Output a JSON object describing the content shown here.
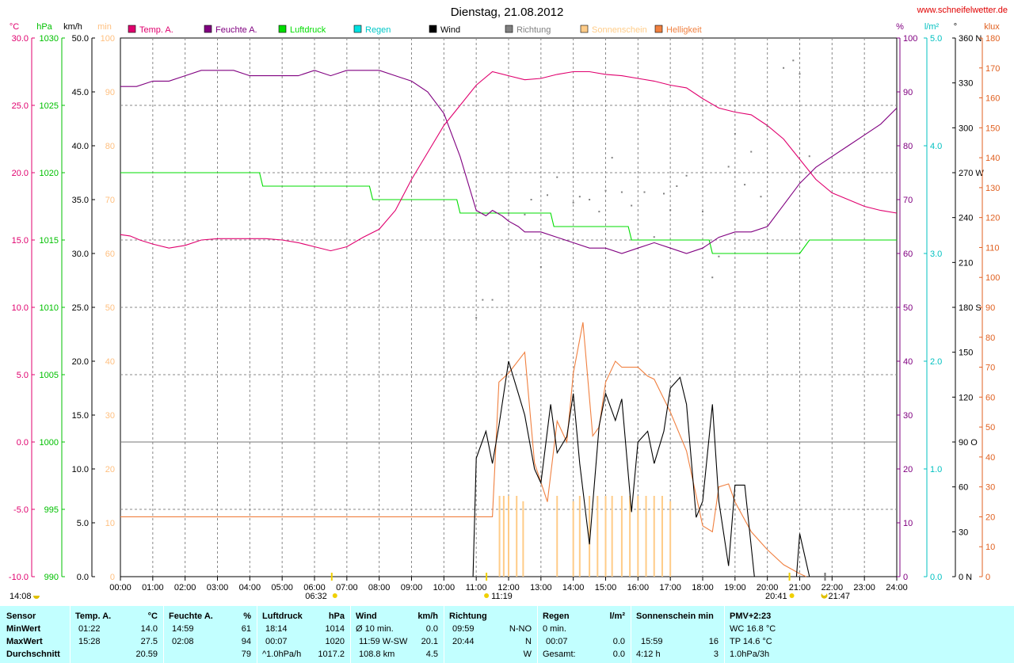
{
  "header": {
    "title": "Dienstag, 21.08.2012",
    "website": "www.schneifelwetter.de"
  },
  "legend": [
    {
      "label": "Temp. A.",
      "color": "#e0006e"
    },
    {
      "label": "Feuchte A.",
      "color": "#800080"
    },
    {
      "label": "Luftdruck",
      "color": "#00dd00"
    },
    {
      "label": "Regen",
      "color": "#00e0e0"
    },
    {
      "label": "Wind",
      "color": "#000000"
    },
    {
      "label": "Richtung",
      "color": "#808080"
    },
    {
      "label": "Sonnenschein",
      "color": "#ffcc88"
    },
    {
      "label": "Helligkeit",
      "color": "#f08040"
    }
  ],
  "units": {
    "temp": "°C",
    "pressure": "hPa",
    "wind": "km/h",
    "sun": "min",
    "humidity": "%",
    "rain": "l/m²",
    "dir": "°",
    "lux": "klux"
  },
  "chart_data": {
    "type": "line",
    "x_ticks": [
      "00:00",
      "01:00",
      "02:00",
      "03:00",
      "04:00",
      "05:00",
      "06:00",
      "07:00",
      "08:00",
      "09:00",
      "10:00",
      "11:00",
      "12:00",
      "13:00",
      "14:00",
      "15:00",
      "16:00",
      "17:00",
      "18:00",
      "19:00",
      "20:00",
      "21:00",
      "22:00",
      "23:00",
      "24:00"
    ],
    "xlim": [
      0,
      24
    ],
    "axes": {
      "temp": {
        "range": [
          -10,
          30
        ],
        "ticks": [
          "-10.0",
          "-5.0",
          "0.0",
          "5.0",
          "10.0",
          "15.0",
          "20.0",
          "25.0",
          "30.0"
        ]
      },
      "pressure": {
        "range": [
          990,
          1030
        ],
        "ticks": [
          "990",
          "995",
          "1000",
          "1005",
          "1010",
          "1015",
          "1020",
          "1025",
          "1030"
        ]
      },
      "wind": {
        "range": [
          0,
          50
        ],
        "ticks": [
          "0.0",
          "5.0",
          "10.0",
          "15.0",
          "20.0",
          "25.0",
          "30.0",
          "35.0",
          "40.0",
          "45.0",
          "50.0"
        ]
      },
      "sun": {
        "range": [
          0,
          100
        ],
        "ticks": [
          "0",
          "10",
          "20",
          "30",
          "40",
          "50",
          "60",
          "70",
          "80",
          "90",
          "100"
        ]
      },
      "humidity": {
        "range": [
          0,
          100
        ],
        "ticks": [
          "0",
          "10",
          "20",
          "30",
          "40",
          "50",
          "60",
          "70",
          "80",
          "90",
          "100"
        ]
      },
      "rain": {
        "range": [
          0,
          5
        ],
        "ticks": [
          "0.0",
          "1.0",
          "2.0",
          "3.0",
          "4.0",
          "5.0"
        ]
      },
      "direction": {
        "range": [
          0,
          360
        ],
        "ticks": [
          "0 N",
          "30",
          "60",
          "90 O",
          "120",
          "150",
          "180 S",
          "210",
          "240",
          "270 W",
          "300",
          "330",
          "360 N"
        ]
      },
      "lux": {
        "range": [
          0,
          180
        ],
        "ticks": [
          "0",
          "10",
          "20",
          "30",
          "40",
          "50",
          "60",
          "70",
          "80",
          "90",
          "100",
          "110",
          "120",
          "130",
          "140",
          "150",
          "160",
          "170",
          "180"
        ]
      }
    },
    "series": [
      {
        "name": "Temp. A.",
        "axis": "temp",
        "color": "#e0006e",
        "x": [
          0,
          0.3,
          0.6,
          1.0,
          1.5,
          2.0,
          2.5,
          3.0,
          3.5,
          4.0,
          4.5,
          5.0,
          5.5,
          6.0,
          6.5,
          7.0,
          7.5,
          8.0,
          8.5,
          9.0,
          9.5,
          10.0,
          10.5,
          11.0,
          11.5,
          12.0,
          12.5,
          13.0,
          13.5,
          14.0,
          14.5,
          15.0,
          15.5,
          16.0,
          16.5,
          17.0,
          17.5,
          18.0,
          18.5,
          19.0,
          19.5,
          20.0,
          20.5,
          21.0,
          21.5,
          22.0,
          22.5,
          23.0,
          23.5,
          24.0
        ],
        "y": [
          15.4,
          15.3,
          15.0,
          14.7,
          14.4,
          14.6,
          15.0,
          15.1,
          15.1,
          15.1,
          15.1,
          15.0,
          14.8,
          14.5,
          14.2,
          14.5,
          15.2,
          15.8,
          17.2,
          19.5,
          21.5,
          23.5,
          25.0,
          26.5,
          27.5,
          27.2,
          26.9,
          27.0,
          27.3,
          27.5,
          27.5,
          27.3,
          27.2,
          27.0,
          26.8,
          26.5,
          26.3,
          25.5,
          24.8,
          24.5,
          24.3,
          23.5,
          22.5,
          21.0,
          19.5,
          18.5,
          18.0,
          17.5,
          17.2,
          17.0
        ]
      },
      {
        "name": "Feuchte A.",
        "axis": "humidity",
        "color": "#800080",
        "x": [
          0,
          0.5,
          1.0,
          1.5,
          2.0,
          2.5,
          3.0,
          3.5,
          4.0,
          4.5,
          5.0,
          5.5,
          6.0,
          6.5,
          7.0,
          7.5,
          8.0,
          8.5,
          9.0,
          9.5,
          10.0,
          10.5,
          11.0,
          11.3,
          11.5,
          11.8,
          12.0,
          12.3,
          12.5,
          13.0,
          13.5,
          14.0,
          14.5,
          15.0,
          15.5,
          16.0,
          16.5,
          17.0,
          17.5,
          18.0,
          18.5,
          19.0,
          19.5,
          20.0,
          20.5,
          21.0,
          21.5,
          22.0,
          22.5,
          23.0,
          23.5,
          24.0
        ],
        "y": [
          91,
          91,
          92,
          92,
          93,
          94,
          94,
          94,
          93,
          93,
          93,
          93,
          94,
          93,
          94,
          94,
          94,
          93,
          92,
          90,
          86,
          78,
          68,
          67,
          68,
          67,
          66,
          65,
          64,
          64,
          63,
          62,
          61,
          61,
          60,
          61,
          62,
          61,
          60,
          61,
          63,
          64,
          64,
          65,
          69,
          73,
          76,
          78,
          80,
          82,
          84,
          87
        ]
      },
      {
        "name": "Luftdruck",
        "axis": "pressure",
        "color": "#00dd00",
        "x": [
          0,
          4.3,
          4.4,
          7.7,
          7.8,
          10.4,
          10.5,
          13.3,
          13.4,
          15.7,
          15.8,
          18.2,
          18.3,
          21.0,
          21.3,
          24.0
        ],
        "y": [
          1020.0,
          1020.0,
          1019.0,
          1019.0,
          1018.0,
          1018.0,
          1017.0,
          1017.0,
          1016.0,
          1016.0,
          1015.0,
          1015.0,
          1014.0,
          1014.0,
          1015.0,
          1015.0
        ]
      },
      {
        "name": "Wind",
        "axis": "wind",
        "color": "#000000",
        "x": [
          0,
          10.9,
          11.0,
          11.3,
          11.5,
          11.7,
          12.0,
          12.3,
          12.5,
          12.8,
          13.0,
          13.3,
          13.5,
          13.8,
          14.0,
          14.2,
          14.5,
          14.8,
          15.0,
          15.3,
          15.5,
          15.8,
          16.0,
          16.3,
          16.5,
          16.8,
          17.0,
          17.3,
          17.5,
          17.8,
          18.0,
          18.3,
          18.5,
          18.8,
          19.0,
          19.3,
          19.6,
          19.9,
          20.0,
          20.9,
          21.0,
          21.3,
          24.0
        ],
        "y": [
          0,
          0,
          11,
          13.5,
          10.5,
          14,
          20,
          17,
          15,
          10,
          8.7,
          16,
          11.5,
          13,
          17,
          10.5,
          3,
          14,
          17,
          14.5,
          16.5,
          6,
          12.5,
          13.5,
          10.5,
          13.5,
          17.5,
          18.5,
          16,
          5.5,
          7,
          16,
          7,
          1,
          8.5,
          8.5,
          0,
          0,
          0,
          0,
          4,
          0,
          0
        ]
      },
      {
        "name": "Helligkeit",
        "axis": "lux",
        "color": "#f08040",
        "x": [
          0,
          11.5,
          11.7,
          12.0,
          12.5,
          12.8,
          13.2,
          13.5,
          13.8,
          14.0,
          14.3,
          14.6,
          14.8,
          15.0,
          15.3,
          15.5,
          16.0,
          16.3,
          16.5,
          17.0,
          17.5,
          18.0,
          18.3,
          18.5,
          18.8,
          19.0,
          19.5,
          20.0,
          20.5,
          21.0,
          21.2
        ],
        "y": [
          20,
          20,
          65,
          68,
          75,
          38,
          25,
          52,
          45,
          68,
          85,
          47,
          50,
          65,
          72,
          70,
          70,
          67,
          66,
          55,
          42,
          17,
          15,
          30,
          31,
          25,
          15,
          9,
          4,
          1,
          0
        ]
      },
      {
        "name": "Richtung",
        "axis": "direction",
        "color": "#808080",
        "style": "points",
        "x": [
          11.0,
          11.2,
          11.5,
          12.0,
          12.5,
          12.7,
          13.0,
          13.2,
          13.5,
          14.0,
          14.2,
          14.5,
          14.8,
          15.0,
          15.2,
          15.5,
          15.8,
          16.2,
          16.5,
          16.8,
          17.0,
          17.2,
          17.5,
          18.0,
          18.3,
          18.5,
          18.8,
          19.0,
          19.3,
          19.5,
          19.8,
          20.0,
          20.5,
          20.8,
          21.0,
          21.3
        ],
        "y": [
          173,
          185,
          185,
          243,
          242,
          252,
          207,
          255,
          267,
          250,
          254,
          252,
          244,
          258,
          280,
          257,
          248,
          257,
          227,
          256,
          245,
          261,
          268,
          244,
          200,
          214,
          274,
          296,
          262,
          284,
          254,
          301,
          340,
          345,
          336,
          281
        ]
      },
      {
        "name": "Sonnenschein",
        "axis": "sun",
        "color": "#ffcc88",
        "style": "bars",
        "x": [
          11.72,
          11.85,
          12.0,
          12.25,
          12.45,
          13.5,
          14.0,
          14.2,
          14.5,
          14.75,
          15.0,
          15.2,
          15.5,
          15.75,
          16.0,
          16.25,
          16.5,
          16.75,
          17.0
        ],
        "y": [
          15,
          15,
          15,
          15,
          14,
          15,
          14,
          15,
          15,
          15,
          15,
          15,
          15,
          15,
          15,
          15,
          15,
          15,
          14
        ]
      }
    ],
    "reference_lines": [
      {
        "axis": "temp",
        "values": [
          -5,
          5,
          15,
          25
        ],
        "style": "dashed"
      },
      {
        "axis": "temp",
        "values": [
          0
        ],
        "style": "solid"
      }
    ]
  },
  "markers": {
    "sunrise": "06:32",
    "noon": "11:19",
    "sunset": "20:41",
    "moonrise": "14:08",
    "moonset": "21:47"
  },
  "stats": {
    "headers": {
      "sensor": "Sensor",
      "temp": "Temp. A.",
      "temp_unit": "°C",
      "hum": "Feuchte A.",
      "hum_unit": "%",
      "press": "Luftdruck",
      "press_unit": "hPa",
      "wind": "Wind",
      "wind_unit": "km/h",
      "dir": "Richtung",
      "rain": "Regen",
      "rain_unit": "l/m²",
      "sun": "Sonnenschein min",
      "pmv": "PMV+2:23"
    },
    "row_labels": [
      "MinWert",
      "MaxWert",
      "Durchschnitt"
    ],
    "temp": [
      [
        "01:22",
        "14.0"
      ],
      [
        "15:28",
        "27.5"
      ],
      [
        "",
        "20.59"
      ]
    ],
    "hum": [
      [
        "14:59",
        "61"
      ],
      [
        "02:08",
        "94"
      ],
      [
        "",
        "79"
      ]
    ],
    "press": [
      [
        "18:14",
        "1014"
      ],
      [
        "00:07",
        "1020"
      ],
      [
        "^1.0hPa/h",
        "1017.2"
      ]
    ],
    "wind": [
      [
        "Ø 10 min.",
        "0.0"
      ],
      [
        "11:59   W-SW",
        "20.1"
      ],
      [
        "108.8 km",
        "4.5"
      ]
    ],
    "dir": [
      [
        "09:59",
        "N-NO"
      ],
      [
        "20:44",
        "N"
      ],
      [
        "",
        "W"
      ]
    ],
    "rain": [
      [
        "0 min.",
        ""
      ],
      [
        "00:07",
        "0.0"
      ],
      [
        "Gesamt:",
        "0.0"
      ]
    ],
    "sun": [
      [
        "",
        ""
      ],
      [
        "15:59",
        "16"
      ],
      [
        "4:12 h",
        "3"
      ]
    ],
    "pmv": [
      "WC 16.8 °C",
      "TP 14.6 °C",
      "1.0hPa/3h"
    ]
  }
}
